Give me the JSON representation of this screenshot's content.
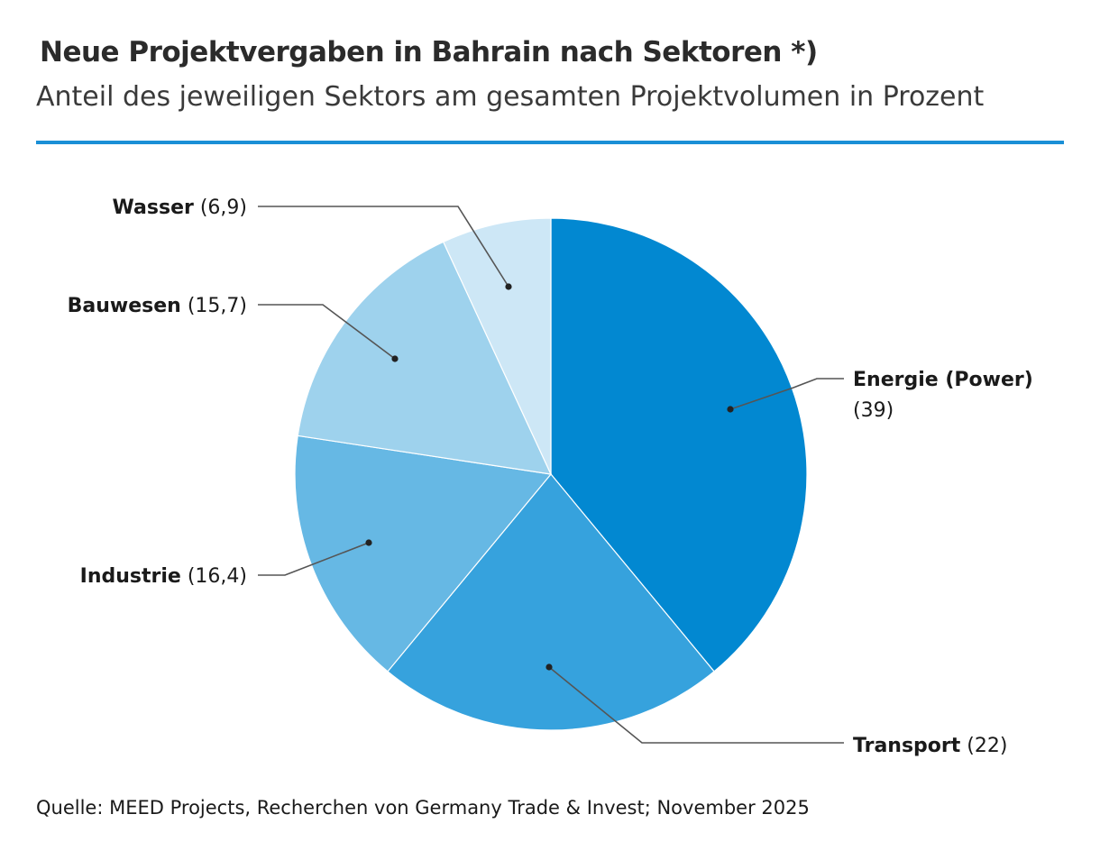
{
  "header": {
    "title": "Neue Projektvergaben in Bahrain nach Sektoren *)",
    "subtitle": "Anteil des jeweiligen Sektors am gesamten Projektvolumen in Prozent"
  },
  "footer": {
    "source": "Quelle: MEED Projects, Recherchen von Germany Trade & Invest; November 2025"
  },
  "colors": {
    "accent_rule": "#1a8fd6",
    "leader": "#555555",
    "dot": "#222222"
  },
  "chart_data": {
    "type": "pie",
    "title": "Neue Projektvergaben in Bahrain nach Sektoren *)",
    "subtitle": "Anteil des jeweiligen Sektors am gesamten Projektvolumen in Prozent",
    "unit": "Prozent",
    "start": "12 o'clock",
    "direction": "clockwise",
    "slices": [
      {
        "label": "Energie (Power)",
        "value_label": "(39)",
        "value": 39,
        "color": "#0288d1"
      },
      {
        "label": "Transport",
        "value_label": "(22)",
        "value": 22,
        "color": "#36a2dd"
      },
      {
        "label": "Industrie",
        "value_label": "(16,4)",
        "value": 16.4,
        "color": "#66b8e4"
      },
      {
        "label": "Bauwesen",
        "value_label": "(15,7)",
        "value": 15.7,
        "color": "#9ed2ed"
      },
      {
        "label": "Wasser",
        "value_label": "(6,9)",
        "value": 6.9,
        "color": "#cde7f6"
      }
    ]
  }
}
